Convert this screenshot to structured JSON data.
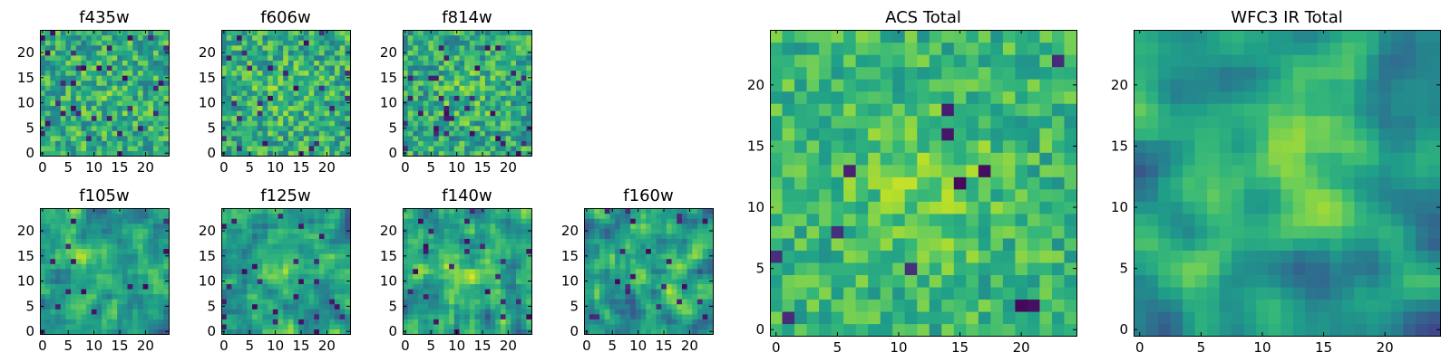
{
  "chart_data": [
    {
      "type": "heatmap",
      "title": "f435w",
      "grid": [
        25,
        25
      ],
      "xlim": [
        0,
        24
      ],
      "ylim": [
        0,
        24
      ],
      "xticks": [
        "0",
        "5",
        "10",
        "15",
        "20"
      ],
      "yticks": [
        "0",
        "5",
        "10",
        "15",
        "20"
      ],
      "colormap": "viridis",
      "seed": 11,
      "smoothness": 0,
      "center_boost": 0.05,
      "base": 0.62,
      "spread": 0.22,
      "dark_prob": 0.05
    },
    {
      "type": "heatmap",
      "title": "f606w",
      "grid": [
        25,
        25
      ],
      "xlim": [
        0,
        24
      ],
      "ylim": [
        0,
        24
      ],
      "xticks": [
        "0",
        "5",
        "10",
        "15",
        "20"
      ],
      "yticks": [
        "0",
        "5",
        "10",
        "15",
        "20"
      ],
      "colormap": "viridis",
      "seed": 23,
      "smoothness": 0,
      "center_boost": 0.08,
      "base": 0.62,
      "spread": 0.22,
      "dark_prob": 0.04
    },
    {
      "type": "heatmap",
      "title": "f814w",
      "grid": [
        25,
        25
      ],
      "xlim": [
        0,
        24
      ],
      "ylim": [
        0,
        24
      ],
      "xticks": [
        "0",
        "5",
        "10",
        "15",
        "20"
      ],
      "yticks": [
        "0",
        "5",
        "10",
        "15",
        "20"
      ],
      "colormap": "viridis",
      "seed": 37,
      "smoothness": 0,
      "center_boost": 0.1,
      "base": 0.6,
      "spread": 0.22,
      "dark_prob": 0.05
    },
    {
      "type": "heatmap",
      "title": "f105w",
      "grid": [
        25,
        25
      ],
      "xlim": [
        0,
        24
      ],
      "ylim": [
        0,
        24
      ],
      "xticks": [
        "0",
        "5",
        "10",
        "15",
        "20"
      ],
      "yticks": [
        "0",
        "5",
        "10",
        "15",
        "20"
      ],
      "colormap": "viridis",
      "seed": 41,
      "smoothness": 1,
      "center_boost": 0.12,
      "base": 0.55,
      "spread": 0.3,
      "dark_prob": 0.03
    },
    {
      "type": "heatmap",
      "title": "f125w",
      "grid": [
        25,
        25
      ],
      "xlim": [
        0,
        24
      ],
      "ylim": [
        0,
        24
      ],
      "xticks": [
        "0",
        "5",
        "10",
        "15",
        "20"
      ],
      "yticks": [
        "0",
        "5",
        "10",
        "15",
        "20"
      ],
      "colormap": "viridis",
      "seed": 53,
      "smoothness": 1,
      "center_boost": 0.12,
      "base": 0.55,
      "spread": 0.3,
      "dark_prob": 0.03
    },
    {
      "type": "heatmap",
      "title": "f140w",
      "grid": [
        25,
        25
      ],
      "xlim": [
        0,
        24
      ],
      "ylim": [
        0,
        24
      ],
      "xticks": [
        "0",
        "5",
        "10",
        "15",
        "20"
      ],
      "yticks": [
        "0",
        "5",
        "10",
        "15",
        "20"
      ],
      "colormap": "viridis",
      "seed": 67,
      "smoothness": 1,
      "center_boost": 0.12,
      "base": 0.55,
      "spread": 0.3,
      "dark_prob": 0.03
    },
    {
      "type": "heatmap",
      "title": "f160w",
      "grid": [
        25,
        25
      ],
      "xlim": [
        0,
        24
      ],
      "ylim": [
        0,
        24
      ],
      "xticks": [
        "0",
        "5",
        "10",
        "15",
        "20"
      ],
      "yticks": [
        "0",
        "5",
        "10",
        "15",
        "20"
      ],
      "colormap": "viridis",
      "seed": 79,
      "smoothness": 1,
      "center_boost": 0.12,
      "base": 0.55,
      "spread": 0.3,
      "dark_prob": 0.03
    },
    {
      "type": "heatmap",
      "title": "ACS Total",
      "grid": [
        25,
        25
      ],
      "xlim": [
        0,
        24
      ],
      "ylim": [
        0,
        24
      ],
      "xticks": [
        "0",
        "5",
        "10",
        "15",
        "20"
      ],
      "yticks": [
        "0",
        "5",
        "10",
        "15",
        "20"
      ],
      "colormap": "viridis",
      "seed": 97,
      "smoothness": 0,
      "center_boost": 0.14,
      "base": 0.66,
      "spread": 0.16,
      "dark_prob": 0.025
    },
    {
      "type": "heatmap",
      "title": "WFC3 IR Total",
      "grid": [
        25,
        25
      ],
      "xlim": [
        0,
        24
      ],
      "ylim": [
        0,
        24
      ],
      "xticks": [
        "0",
        "5",
        "10",
        "15",
        "20"
      ],
      "yticks": [
        "0",
        "5",
        "10",
        "15",
        "20"
      ],
      "colormap": "viridis",
      "seed": 131,
      "smoothness": 2,
      "center_boost": 0.32,
      "base": 0.5,
      "spread": 0.28,
      "dark_prob": 0.0
    }
  ]
}
